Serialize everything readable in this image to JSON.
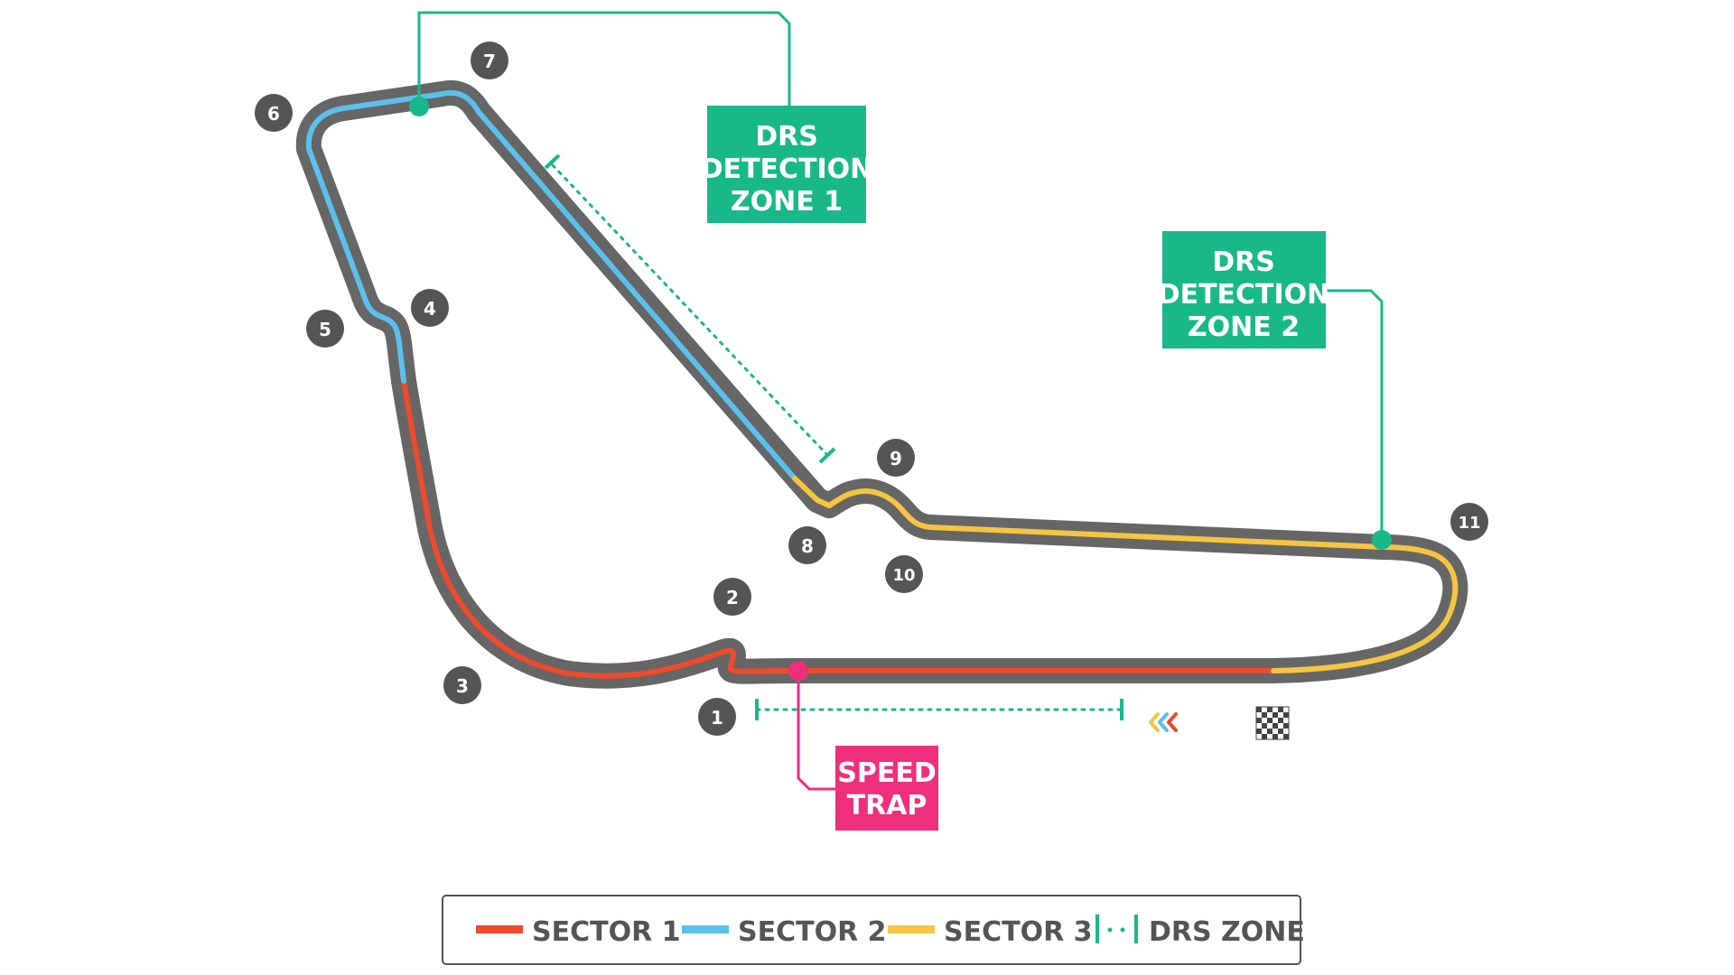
{
  "colors": {
    "track": "#666666",
    "sector1": "#ee4a2d",
    "sector2": "#5bc0eb",
    "sector3": "#f5c542",
    "drs": "#19b888",
    "speed_trap": "#ee2f7c",
    "corner_badge": "#555555",
    "corner_text": "#ffffff"
  },
  "corners": [
    "1",
    "2",
    "3",
    "4",
    "5",
    "6",
    "7",
    "8",
    "9",
    "10",
    "11"
  ],
  "callouts": {
    "drs_detection_1": [
      "DRS",
      "DETECTION",
      "ZONE 1"
    ],
    "drs_detection_2": [
      "DRS",
      "DETECTION",
      "ZONE 2"
    ],
    "speed_trap": [
      "SPEED",
      "TRAP"
    ]
  },
  "legend": {
    "sector1": "SECTOR 1",
    "sector2": "SECTOR 2",
    "sector3": "SECTOR 3",
    "drs_zone": "DRS ZONE"
  },
  "icons": {
    "start_direction": "direction-chevrons-icon",
    "finish": "checkered-flag-icon"
  }
}
